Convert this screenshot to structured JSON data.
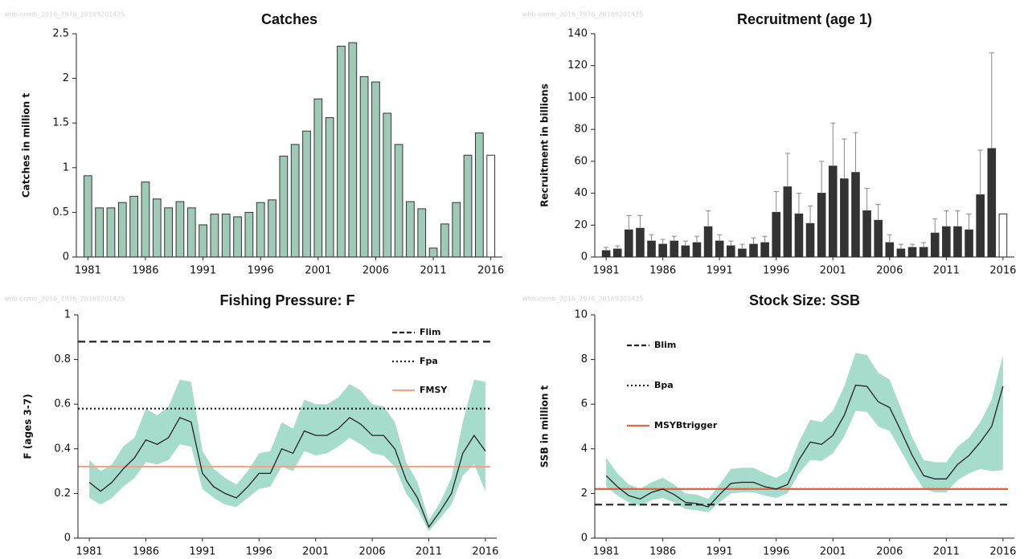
{
  "chart_data": [
    {
      "type": "bar",
      "title": "Catches",
      "ylabel": "Catches in million t",
      "watermark": "whb-comb_2016_7976_20169201425",
      "x": [
        1981,
        1982,
        1983,
        1984,
        1985,
        1986,
        1987,
        1988,
        1989,
        1990,
        1991,
        1992,
        1993,
        1994,
        1995,
        1996,
        1997,
        1998,
        1999,
        2000,
        2001,
        2002,
        2003,
        2004,
        2005,
        2006,
        2007,
        2008,
        2009,
        2010,
        2011,
        2012,
        2013,
        2014,
        2015,
        2016
      ],
      "values": [
        0.91,
        0.55,
        0.55,
        0.61,
        0.68,
        0.84,
        0.65,
        0.55,
        0.62,
        0.55,
        0.36,
        0.48,
        0.48,
        0.45,
        0.5,
        0.61,
        0.64,
        1.13,
        1.26,
        1.41,
        1.77,
        1.56,
        2.36,
        2.4,
        2.02,
        1.96,
        1.61,
        1.26,
        0.62,
        0.54,
        0.1,
        0.37,
        0.61,
        1.14,
        1.39,
        1.14
      ],
      "colors": [
        "#9fcab7",
        "#9fcab7",
        "#9fcab7",
        "#9fcab7",
        "#9fcab7",
        "#9fcab7",
        "#9fcab7",
        "#9fcab7",
        "#9fcab7",
        "#9fcab7",
        "#9fcab7",
        "#9fcab7",
        "#9fcab7",
        "#9fcab7",
        "#9fcab7",
        "#9fcab7",
        "#9fcab7",
        "#9fcab7",
        "#9fcab7",
        "#9fcab7",
        "#9fcab7",
        "#9fcab7",
        "#9fcab7",
        "#9fcab7",
        "#9fcab7",
        "#9fcab7",
        "#9fcab7",
        "#9fcab7",
        "#9fcab7",
        "#9fcab7",
        "#9fcab7",
        "#9fcab7",
        "#9fcab7",
        "#9fcab7",
        "#9fcab7",
        "#ffffff"
      ],
      "xlim": [
        1980,
        2017
      ],
      "xticks": [
        1981,
        1986,
        1991,
        1996,
        2001,
        2006,
        2011,
        2016
      ],
      "ylim": [
        0,
        2.5
      ],
      "yticks": [
        0,
        0.5,
        1,
        1.5,
        2,
        2.5
      ]
    },
    {
      "type": "bar",
      "title": "Recruitment (age 1)",
      "ylabel": "Recruitment in billions",
      "watermark": "whb-comb_2016_7976_20169201425",
      "x": [
        1981,
        1982,
        1983,
        1984,
        1985,
        1986,
        1987,
        1988,
        1989,
        1990,
        1991,
        1992,
        1993,
        1994,
        1995,
        1996,
        1997,
        1998,
        1999,
        2000,
        2001,
        2002,
        2003,
        2004,
        2005,
        2006,
        2007,
        2008,
        2009,
        2010,
        2011,
        2012,
        2013,
        2014,
        2015,
        2016
      ],
      "values": [
        4,
        5,
        17,
        18,
        10,
        8,
        10,
        7,
        9,
        19,
        10,
        7,
        5,
        8,
        9,
        28,
        44,
        27,
        21,
        40,
        57,
        49,
        53,
        29,
        23,
        9,
        5,
        6,
        6,
        15,
        19,
        19,
        17,
        39,
        68,
        27
      ],
      "upper": [
        6,
        7,
        26,
        26,
        14,
        11,
        13,
        10,
        13,
        29,
        14,
        10,
        8,
        12,
        13,
        41,
        65,
        40,
        32,
        60,
        84,
        74,
        78,
        43,
        33,
        14,
        8,
        8,
        9,
        24,
        29,
        29,
        27,
        67,
        128,
        null
      ],
      "colors": [
        "#333333",
        "#333333",
        "#333333",
        "#333333",
        "#333333",
        "#333333",
        "#333333",
        "#333333",
        "#333333",
        "#333333",
        "#333333",
        "#333333",
        "#333333",
        "#333333",
        "#333333",
        "#333333",
        "#333333",
        "#333333",
        "#333333",
        "#333333",
        "#333333",
        "#333333",
        "#333333",
        "#333333",
        "#333333",
        "#333333",
        "#333333",
        "#333333",
        "#333333",
        "#333333",
        "#333333",
        "#333333",
        "#333333",
        "#333333",
        "#333333",
        "#ffffff"
      ],
      "xlim": [
        1980,
        2017
      ],
      "xticks": [
        1981,
        1986,
        1991,
        1996,
        2001,
        2006,
        2011,
        2016
      ],
      "ylim": [
        0,
        140
      ],
      "yticks": [
        0,
        20,
        40,
        60,
        80,
        100,
        120,
        140
      ]
    },
    {
      "type": "line",
      "title": "Fishing Pressure: F",
      "ylabel": "F (ages 3-7)",
      "watermark": "whb-comb_2016_7976_20169201425",
      "x": [
        1981,
        1982,
        1983,
        1984,
        1985,
        1986,
        1987,
        1988,
        1989,
        1990,
        1991,
        1992,
        1993,
        1994,
        1995,
        1996,
        1997,
        1998,
        1999,
        2000,
        2001,
        2002,
        2003,
        2004,
        2005,
        2006,
        2007,
        2008,
        2009,
        2010,
        2011,
        2012,
        2013,
        2014,
        2015,
        2016
      ],
      "values": [
        0.25,
        0.21,
        0.25,
        0.31,
        0.36,
        0.44,
        0.42,
        0.45,
        0.54,
        0.52,
        0.29,
        0.23,
        0.2,
        0.18,
        0.23,
        0.29,
        0.29,
        0.4,
        0.38,
        0.48,
        0.46,
        0.46,
        0.49,
        0.54,
        0.51,
        0.46,
        0.46,
        0.4,
        0.26,
        0.18,
        0.05,
        0.12,
        0.2,
        0.38,
        0.46,
        0.39
      ],
      "lower": [
        0.18,
        0.15,
        0.18,
        0.23,
        0.27,
        0.34,
        0.33,
        0.35,
        0.42,
        0.41,
        0.22,
        0.18,
        0.15,
        0.14,
        0.18,
        0.22,
        0.23,
        0.32,
        0.3,
        0.39,
        0.37,
        0.38,
        0.41,
        0.45,
        0.42,
        0.38,
        0.37,
        0.32,
        0.2,
        0.13,
        0.03,
        0.09,
        0.15,
        0.28,
        0.33,
        0.21
      ],
      "upper": [
        0.35,
        0.3,
        0.33,
        0.41,
        0.45,
        0.58,
        0.55,
        0.59,
        0.71,
        0.7,
        0.39,
        0.31,
        0.27,
        0.24,
        0.3,
        0.38,
        0.39,
        0.52,
        0.49,
        0.62,
        0.6,
        0.6,
        0.63,
        0.69,
        0.66,
        0.6,
        0.59,
        0.52,
        0.34,
        0.25,
        0.08,
        0.16,
        0.27,
        0.52,
        0.71,
        0.7
      ],
      "color": "#222222",
      "band_color": "#a6dccb",
      "hlines": [
        {
          "name": "Flim",
          "value": 0.88,
          "color": "#222222",
          "style": "dashed"
        },
        {
          "name": "Fpa",
          "value": 0.58,
          "color": "#222222",
          "style": "dotted"
        },
        {
          "name": "FMSY",
          "value": 0.32,
          "color": "#f3a488",
          "style": "solid"
        }
      ],
      "legend": "upper right",
      "xlim": [
        1980,
        2017
      ],
      "xticks": [
        1981,
        1986,
        1991,
        1996,
        2001,
        2006,
        2011,
        2016
      ],
      "ylim": [
        0,
        1
      ],
      "yticks": [
        0,
        0.2,
        0.4,
        0.6,
        0.8,
        1
      ]
    },
    {
      "type": "line",
      "title": "Stock Size: SSB",
      "ylabel": "SSB in million t",
      "watermark": "whb-comb_2016_7976_20169201425",
      "x": [
        1981,
        1982,
        1983,
        1984,
        1985,
        1986,
        1987,
        1988,
        1989,
        1990,
        1991,
        1992,
        1993,
        1994,
        1995,
        1996,
        1997,
        1998,
        1999,
        2000,
        2001,
        2002,
        2003,
        2004,
        2005,
        2006,
        2007,
        2008,
        2009,
        2010,
        2011,
        2012,
        2013,
        2014,
        2015,
        2016
      ],
      "values": [
        2.8,
        2.3,
        1.9,
        1.75,
        2.05,
        2.2,
        1.95,
        1.6,
        1.55,
        1.4,
        1.95,
        2.45,
        2.5,
        2.5,
        2.3,
        2.2,
        2.4,
        3.5,
        4.3,
        4.2,
        4.6,
        5.5,
        6.85,
        6.8,
        6.1,
        5.85,
        4.8,
        3.7,
        2.8,
        2.65,
        2.65,
        3.3,
        3.7,
        4.3,
        5.0,
        6.8
      ],
      "lower": [
        2.3,
        1.9,
        1.6,
        1.45,
        1.7,
        1.8,
        1.6,
        1.3,
        1.25,
        1.15,
        1.6,
        2.0,
        2.05,
        2.05,
        1.9,
        1.8,
        2.0,
        2.9,
        3.5,
        3.45,
        3.8,
        4.55,
        5.7,
        5.65,
        5.0,
        4.8,
        3.9,
        3.0,
        2.2,
        2.05,
        2.05,
        2.6,
        2.9,
        3.1,
        3.0,
        3.05
      ],
      "upper": [
        3.6,
        2.9,
        2.4,
        2.2,
        2.5,
        2.7,
        2.4,
        2.0,
        1.95,
        1.75,
        2.4,
        3.1,
        3.15,
        3.15,
        2.9,
        2.7,
        3.0,
        4.3,
        5.3,
        5.2,
        5.7,
        6.8,
        8.3,
        8.2,
        7.4,
        7.1,
        5.8,
        4.5,
        3.5,
        3.4,
        3.4,
        4.1,
        4.5,
        5.2,
        6.2,
        8.2
      ],
      "color": "#222222",
      "band_color": "#a6dccb",
      "hlines": [
        {
          "name": "Blim",
          "value": 1.5,
          "color": "#222222",
          "style": "dashed"
        },
        {
          "name": "Bpa",
          "value": 2.2,
          "color": "#222222",
          "style": "dotted"
        },
        {
          "name": "MSYBtrigger",
          "value": 2.2,
          "color": "#e8623a",
          "style": "solid"
        }
      ],
      "legend": "upper left",
      "xlim": [
        1980,
        2017
      ],
      "xticks": [
        1981,
        1986,
        1991,
        1996,
        2001,
        2006,
        2011,
        2016
      ],
      "ylim": [
        0,
        10
      ],
      "yticks": [
        0,
        2,
        4,
        6,
        8,
        10
      ]
    }
  ]
}
